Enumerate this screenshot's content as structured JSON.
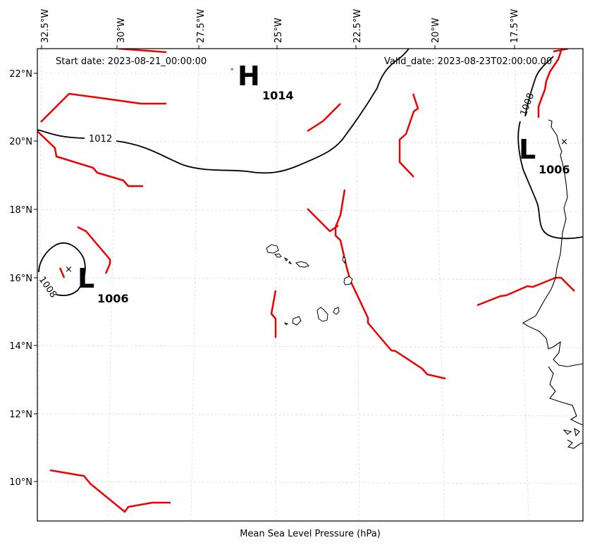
{
  "map": {
    "start_date": "Start date: 2023-08-21_00:00:00",
    "valid_date": "Valid_date: 2023-08-23T02:00:00.00",
    "caption": "Mean Sea Level Pressure (hPa)",
    "longitude_ticks": [
      "32.5°W",
      "30°W",
      "27.5°W",
      "25°W",
      "22.5°W",
      "20°W",
      "17.5°W"
    ],
    "latitude_ticks": [
      "22°N",
      "20°N",
      "18°N",
      "16°N",
      "14°N",
      "12°N",
      "10°N"
    ],
    "pressure_centers": [
      {
        "type": "H",
        "value": "1014"
      },
      {
        "type": "L",
        "value": "1006"
      },
      {
        "type": "L",
        "value": "1006"
      }
    ],
    "isobar_labels": [
      "1012",
      "1008",
      "1008"
    ],
    "colors": {
      "isobar": "#000000",
      "front": "#ee0000",
      "grid": "#d8d8d8"
    }
  }
}
